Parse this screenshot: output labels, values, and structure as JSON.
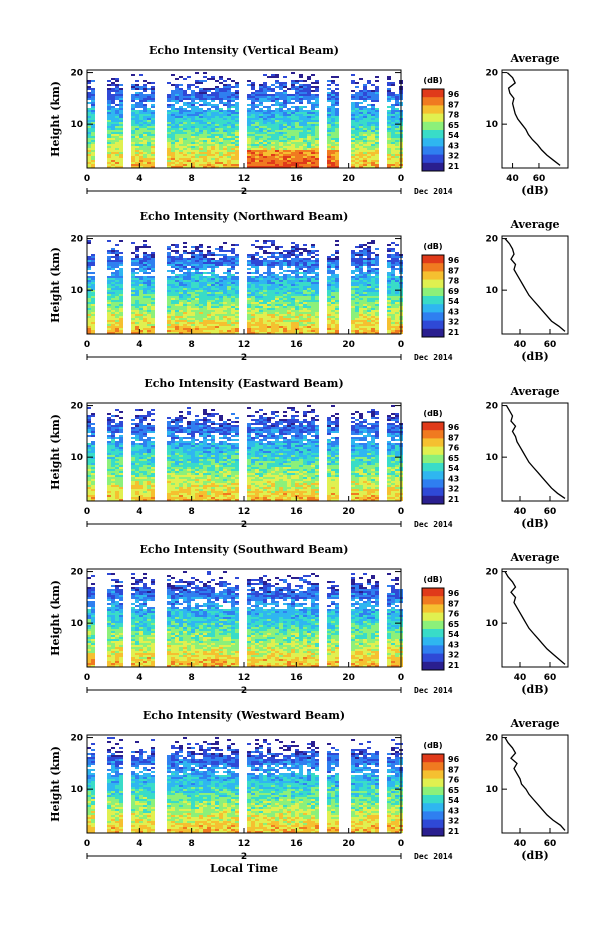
{
  "chart_data": [
    {
      "type": "heatmap",
      "title": "Echo Intensity (Vertical Beam)",
      "xlabel": "",
      "ylabel": "Height (km)",
      "x_ticks": [
        "0",
        "4",
        "8",
        "12",
        "16",
        "20",
        "0"
      ],
      "xlim": [
        0,
        24
      ],
      "ylim": [
        1.5,
        20.5
      ],
      "y_ticks": [
        "10",
        "20"
      ],
      "date_label": "2",
      "month_label": "Dec 2014",
      "data_gaps_hours": [
        1.0,
        3.0,
        5.6,
        11.8,
        17.9,
        19.7,
        22.5
      ],
      "colorbar": {
        "unit": "(dB)",
        "ticks": [
          "96",
          "87",
          "78",
          "65",
          "54",
          "43",
          "32",
          "21"
        ]
      },
      "average_profile": {
        "title": "Average",
        "xlabel": "(dB)",
        "x_ticks": [
          "40",
          "60"
        ],
        "xlim": [
          32,
          82
        ],
        "y_ticks": [
          "10",
          "20"
        ],
        "heights_km": [
          2,
          3,
          4,
          5,
          6,
          7,
          8,
          9,
          10,
          11,
          12,
          13,
          14,
          15,
          16,
          17,
          18,
          19,
          20
        ],
        "values_db": [
          76,
          71,
          66,
          62,
          59,
          55,
          52,
          50,
          47,
          44,
          42,
          41,
          40,
          41,
          38,
          37,
          42,
          40,
          36
        ]
      }
    },
    {
      "type": "heatmap",
      "title": "Echo Intensity (Northward Beam)",
      "xlabel": "",
      "ylabel": "Height (km)",
      "x_ticks": [
        "0",
        "4",
        "8",
        "12",
        "16",
        "20",
        "0"
      ],
      "xlim": [
        0,
        24
      ],
      "ylim": [
        1.5,
        20.5
      ],
      "y_ticks": [
        "10",
        "20"
      ],
      "date_label": "2",
      "month_label": "Dec 2014",
      "data_gaps_hours": [
        1.0,
        3.0,
        5.6,
        11.8,
        17.9,
        19.7,
        22.5
      ],
      "colorbar": {
        "unit": "(dB)",
        "ticks": [
          "96",
          "87",
          "78",
          "69",
          "54",
          "43",
          "32",
          "21"
        ]
      },
      "average_profile": {
        "title": "Average",
        "xlabel": "(dB)",
        "x_ticks": [
          "40",
          "60"
        ],
        "xlim": [
          28,
          72
        ],
        "y_ticks": [
          "10",
          "20"
        ],
        "heights_km": [
          2,
          3,
          4,
          5,
          6,
          7,
          8,
          9,
          10,
          11,
          12,
          13,
          14,
          15,
          16,
          17,
          18,
          19,
          20
        ],
        "values_db": [
          70,
          66,
          61,
          58,
          55,
          52,
          49,
          46,
          44,
          42,
          40,
          38,
          36,
          37,
          34,
          36,
          35,
          33,
          30
        ]
      }
    },
    {
      "type": "heatmap",
      "title": "Echo Intensity (Eastward Beam)",
      "xlabel": "",
      "ylabel": "Height (km)",
      "x_ticks": [
        "0",
        "4",
        "8",
        "12",
        "16",
        "20",
        "0"
      ],
      "xlim": [
        0,
        24
      ],
      "ylim": [
        1.5,
        20.5
      ],
      "y_ticks": [
        "10",
        "20"
      ],
      "date_label": "2",
      "month_label": "Dec 2014",
      "data_gaps_hours": [
        1.0,
        3.0,
        5.6,
        11.8,
        17.9,
        19.7,
        22.5
      ],
      "colorbar": {
        "unit": "(dB)",
        "ticks": [
          "96",
          "87",
          "76",
          "65",
          "54",
          "43",
          "32",
          "21"
        ]
      },
      "average_profile": {
        "title": "Average",
        "xlabel": "(dB)",
        "x_ticks": [
          "40",
          "60"
        ],
        "xlim": [
          28,
          72
        ],
        "y_ticks": [
          "10",
          "20"
        ],
        "heights_km": [
          2,
          3,
          4,
          5,
          6,
          7,
          8,
          9,
          10,
          11,
          12,
          13,
          14,
          15,
          16,
          17,
          18,
          19,
          20
        ],
        "values_db": [
          70,
          65,
          61,
          58,
          55,
          52,
          49,
          46,
          44,
          42,
          40,
          38,
          37,
          35,
          37,
          34,
          35,
          33,
          31
        ]
      }
    },
    {
      "type": "heatmap",
      "title": "Echo Intensity (Southward Beam)",
      "xlabel": "",
      "ylabel": "Height (km)",
      "x_ticks": [
        "0",
        "4",
        "8",
        "12",
        "16",
        "20",
        "0"
      ],
      "xlim": [
        0,
        24
      ],
      "ylim": [
        1.5,
        20.5
      ],
      "y_ticks": [
        "10",
        "20"
      ],
      "date_label": "2",
      "month_label": "Dec 2014",
      "data_gaps_hours": [
        1.0,
        3.0,
        5.6,
        11.8,
        17.9,
        19.7,
        22.5
      ],
      "colorbar": {
        "unit": "(dB)",
        "ticks": [
          "96",
          "87",
          "76",
          "65",
          "54",
          "43",
          "32",
          "21"
        ]
      },
      "average_profile": {
        "title": "Average",
        "xlabel": "(dB)",
        "x_ticks": [
          "40",
          "60"
        ],
        "xlim": [
          28,
          72
        ],
        "y_ticks": [
          "10",
          "20"
        ],
        "heights_km": [
          2,
          3,
          4,
          5,
          6,
          7,
          8,
          9,
          10,
          11,
          12,
          13,
          14,
          15,
          16,
          17,
          18,
          19,
          20
        ],
        "values_db": [
          70,
          66,
          62,
          58,
          55,
          52,
          49,
          46,
          44,
          42,
          40,
          38,
          36,
          37,
          34,
          37,
          35,
          32,
          30
        ]
      }
    },
    {
      "type": "heatmap",
      "title": "Echo Intensity (Westward Beam)",
      "xlabel": "Local Time",
      "ylabel": "Height (km)",
      "x_ticks": [
        "0",
        "4",
        "8",
        "12",
        "16",
        "20",
        "0"
      ],
      "xlim": [
        0,
        24
      ],
      "ylim": [
        1.5,
        20.5
      ],
      "y_ticks": [
        "10",
        "20"
      ],
      "date_label": "2",
      "month_label": "Dec 2014",
      "data_gaps_hours": [
        1.0,
        3.0,
        5.6,
        11.8,
        17.9,
        19.7,
        22.5
      ],
      "colorbar": {
        "unit": "(dB)",
        "ticks": [
          "96",
          "87",
          "76",
          "65",
          "54",
          "43",
          "32",
          "21"
        ]
      },
      "average_profile": {
        "title": "Average",
        "xlabel": "(dB)",
        "x_ticks": [
          "40",
          "60"
        ],
        "xlim": [
          28,
          72
        ],
        "y_ticks": [
          "10",
          "20"
        ],
        "heights_km": [
          2,
          3,
          4,
          5,
          6,
          7,
          8,
          9,
          10,
          11,
          12,
          13,
          14,
          15,
          16,
          17,
          18,
          19,
          20
        ],
        "values_db": [
          70,
          67,
          62,
          58,
          55,
          52,
          49,
          46,
          44,
          41,
          40,
          38,
          36,
          38,
          34,
          37,
          35,
          32,
          30
        ]
      }
    }
  ],
  "colormap": [
    "#2a1f8f",
    "#2f49d6",
    "#2f7ff0",
    "#2fb6f0",
    "#39dcc8",
    "#8cf07a",
    "#e0f050",
    "#f5c030",
    "#f07a20",
    "#e03a1a"
  ]
}
